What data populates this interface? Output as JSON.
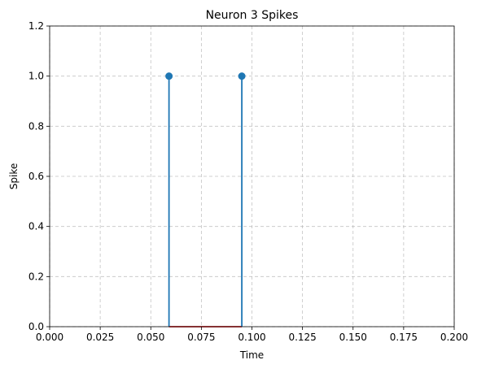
{
  "chart_data": {
    "type": "stem",
    "title": "Neuron 3 Spikes",
    "xlabel": "Time",
    "ylabel": "Spike",
    "xlim": [
      0.0,
      0.2
    ],
    "ylim": [
      0.0,
      1.2
    ],
    "x_ticks": [
      "0.000",
      "0.025",
      "0.050",
      "0.075",
      "0.100",
      "0.125",
      "0.150",
      "0.175",
      "0.200"
    ],
    "y_ticks": [
      "0.0",
      "0.2",
      "0.4",
      "0.6",
      "0.8",
      "1.0",
      "1.2"
    ],
    "grid": true,
    "baseline": 0,
    "series": [
      {
        "x": [
          0.059,
          0.095
        ],
        "y": [
          1.0,
          1.0
        ]
      }
    ],
    "colors": {
      "stem": "#1f77b4",
      "baseline": "#d62728"
    }
  }
}
